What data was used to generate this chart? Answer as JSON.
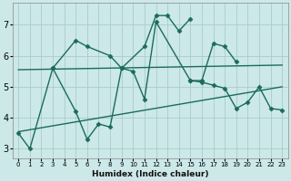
{
  "xlabel": "Humidex (Indice chaleur)",
  "bg_color": "#cce8e8",
  "grid_color": "#aacccc",
  "line_color": "#1a6b5a",
  "xlim": [
    -0.5,
    23.5
  ],
  "ylim": [
    2.7,
    7.7
  ],
  "yticks": [
    3,
    4,
    5,
    6,
    7
  ],
  "xticks": [
    0,
    1,
    2,
    3,
    4,
    5,
    6,
    7,
    8,
    9,
    10,
    11,
    12,
    13,
    14,
    15,
    16,
    17,
    18,
    19,
    20,
    21,
    22,
    23
  ],
  "line1": {
    "x": [
      0,
      1,
      3,
      5,
      6,
      8,
      9,
      11,
      12,
      13,
      14,
      15
    ],
    "y": [
      3.5,
      3.0,
      5.6,
      6.5,
      6.3,
      6.0,
      5.6,
      6.3,
      7.3,
      7.3,
      6.8,
      7.2
    ]
  },
  "line2": {
    "x": [
      3,
      5,
      6,
      7,
      8,
      9,
      10,
      11,
      12,
      15,
      16,
      17,
      18,
      19
    ],
    "y": [
      5.6,
      4.2,
      3.3,
      3.8,
      3.7,
      5.6,
      5.5,
      4.6,
      7.1,
      5.2,
      5.2,
      6.4,
      6.3,
      5.8
    ]
  },
  "line3": {
    "x": [
      15,
      16,
      17,
      18,
      19,
      20,
      21,
      22,
      23
    ],
    "y": [
      5.2,
      5.15,
      5.05,
      4.95,
      4.3,
      4.5,
      5.0,
      4.3,
      4.25
    ]
  },
  "trend1_x": [
    0,
    23
  ],
  "trend1_y": [
    5.55,
    5.7
  ],
  "trend2_x": [
    0,
    23
  ],
  "trend2_y": [
    3.55,
    5.0
  ]
}
